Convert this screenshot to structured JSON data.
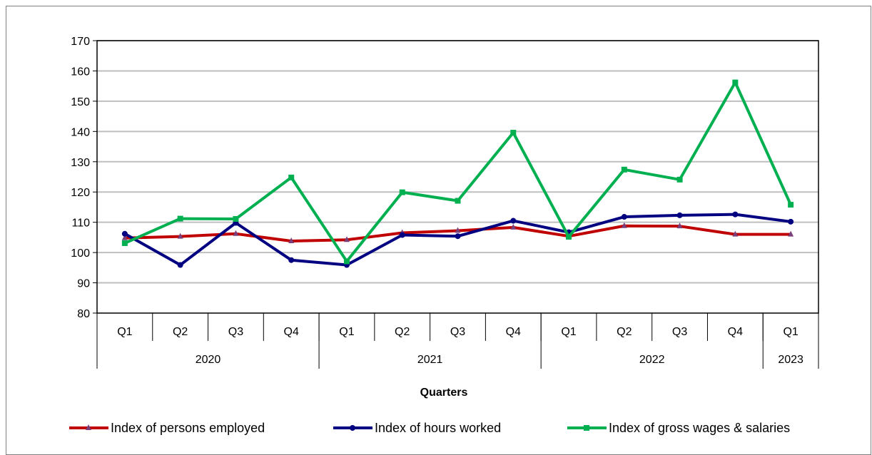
{
  "chart_data": {
    "type": "line",
    "title": "",
    "xlabel": "Quarters",
    "ylabel": "",
    "ylim": [
      80,
      170
    ],
    "yticks": [
      80,
      90,
      100,
      110,
      120,
      130,
      140,
      150,
      160,
      170
    ],
    "grid": true,
    "legend_position": "bottom",
    "categories": [
      "Q1",
      "Q2",
      "Q3",
      "Q4",
      "Q1",
      "Q2",
      "Q3",
      "Q4",
      "Q1",
      "Q2",
      "Q3",
      "Q4",
      "Q1"
    ],
    "groups": [
      {
        "label": "2020",
        "count": 4
      },
      {
        "label": "2021",
        "count": 4
      },
      {
        "label": "2022",
        "count": 4
      },
      {
        "label": "2023",
        "count": 1
      }
    ],
    "series": [
      {
        "name": "Index of persons employed",
        "color": "#c00000",
        "marker": "triangle",
        "values": [
          104.8,
          105.3,
          106.2,
          103.8,
          104.2,
          106.5,
          107.2,
          108.3,
          105.4,
          108.8,
          108.7,
          106.0,
          106.0
        ]
      },
      {
        "name": "Index of hours worked",
        "color": "#000080",
        "marker": "circle",
        "values": [
          106.2,
          95.9,
          109.8,
          97.5,
          95.9,
          105.8,
          105.4,
          110.5,
          106.7,
          111.8,
          112.3,
          112.6,
          110.2
        ]
      },
      {
        "name": "Index of gross wages & salaries",
        "color": "#00b050",
        "marker": "square",
        "values": [
          103.1,
          111.2,
          111.1,
          124.8,
          97.1,
          119.9,
          117.1,
          139.6,
          105.2,
          127.4,
          124.1,
          156.2,
          115.8
        ]
      }
    ]
  }
}
